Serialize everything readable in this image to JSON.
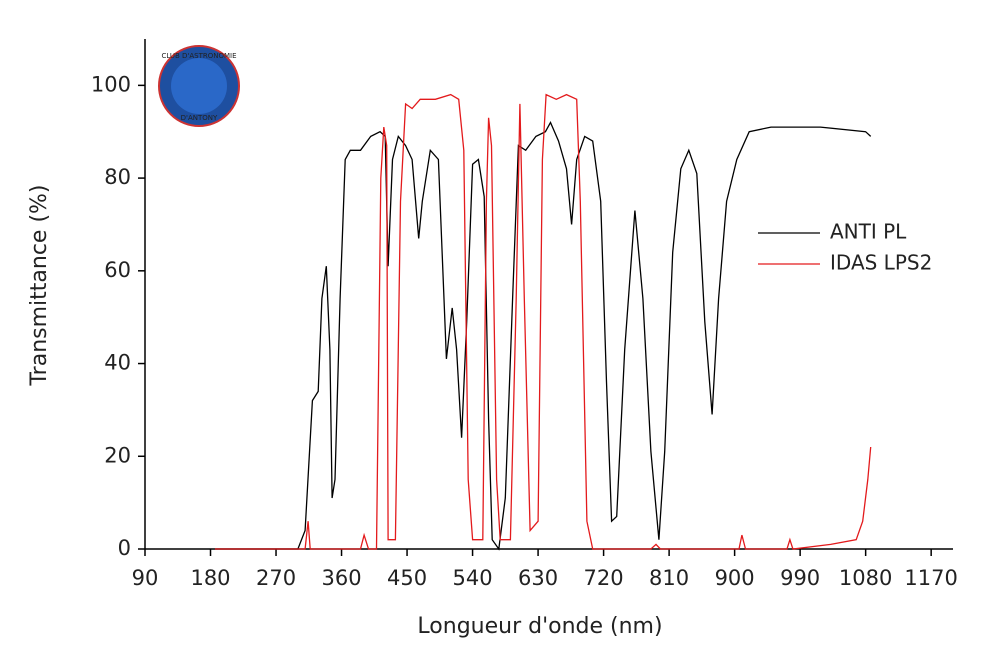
{
  "chart_data": {
    "type": "line",
    "xlabel": "Longueur d'onde (nm)",
    "ylabel": "Transmittance (%)",
    "xlim": [
      90,
      1200
    ],
    "xticks": [
      90,
      180,
      270,
      360,
      450,
      540,
      630,
      720,
      810,
      900,
      990,
      1080,
      1170
    ],
    "ylim": [
      0,
      110
    ],
    "yticks": [
      0,
      20,
      40,
      60,
      80,
      100
    ],
    "legend": "right",
    "logo": {
      "top": "CLUB D'ASTRONOMIE",
      "bottom": "D'ANTONY"
    },
    "series": [
      {
        "name": "ANTI PL",
        "color": "#000000",
        "x": [
          186,
          300,
          310,
          320,
          328,
          333,
          339,
          344,
          347,
          351,
          358,
          365,
          372,
          386,
          400,
          413,
          420,
          424,
          430,
          438,
          448,
          457,
          466,
          471,
          482,
          493,
          504,
          512,
          518,
          525,
          532,
          540,
          548,
          556,
          562,
          567,
          576,
          585,
          595,
          603,
          613,
          627,
          640,
          647,
          658,
          669,
          676,
          683,
          694,
          705,
          716,
          724,
          731,
          738,
          749,
          763,
          774,
          785,
          796,
          804,
          815,
          826,
          837,
          848,
          859,
          869,
          878,
          889,
          903,
          920,
          950,
          1018,
          1080,
          1087
        ],
        "values": [
          0,
          0,
          4,
          32,
          34,
          54,
          61,
          43,
          11,
          15,
          54,
          84,
          86,
          86,
          89,
          90,
          89,
          61,
          84,
          89,
          87,
          84,
          67,
          75,
          86,
          84,
          41,
          52,
          43,
          24,
          49,
          83,
          84,
          76,
          28,
          2,
          0,
          11,
          54,
          87,
          86,
          89,
          90,
          92,
          88,
          82,
          70,
          84,
          89,
          88,
          75,
          36,
          6,
          7,
          43,
          73,
          54,
          21,
          2,
          21,
          64,
          82,
          86,
          81,
          49,
          29,
          54,
          75,
          84,
          90,
          91,
          91,
          90,
          89
        ]
      },
      {
        "name": "IDAS LPS2",
        "color": "#e31a1c",
        "x": [
          186,
          310,
          314,
          317,
          386,
          391,
          397,
          408,
          414,
          418,
          422,
          424,
          434,
          441,
          448,
          457,
          468,
          489,
          510,
          521,
          528,
          534,
          540,
          554,
          559,
          562,
          566,
          573,
          578,
          592,
          600,
          605,
          611,
          619,
          630,
          636,
          641,
          655,
          669,
          683,
          688,
          697,
          705,
          785,
          792,
          798,
          906,
          910,
          915,
          972,
          976,
          980,
          1032,
          1067,
          1076,
          1083,
          1087
        ],
        "values": [
          0,
          0,
          6,
          0,
          0,
          3,
          0,
          0,
          80,
          91,
          87,
          2,
          2,
          75,
          96,
          95,
          97,
          97,
          98,
          97,
          86,
          15,
          2,
          2,
          75,
          93,
          87,
          15,
          2,
          2,
          54,
          96,
          54,
          4,
          6,
          84,
          98,
          97,
          98,
          97,
          75,
          6,
          0,
          0,
          1,
          0,
          0,
          3,
          0,
          0,
          2,
          0,
          1,
          2,
          6,
          15,
          22
        ]
      }
    ]
  }
}
